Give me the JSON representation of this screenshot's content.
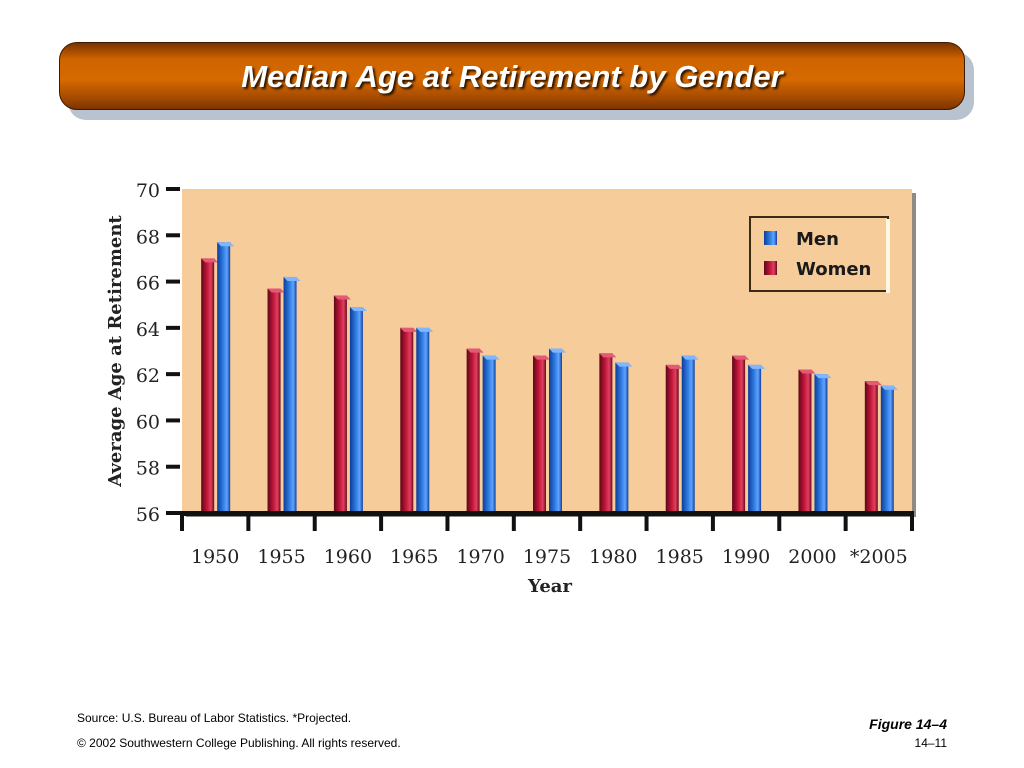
{
  "slide": {
    "title": "Median Age at Retirement by Gender",
    "source": "Source: U.S. Bureau of Labor Statistics. *Projected.",
    "copyright": "© 2002 Southwestern College Publishing. All rights reserved.",
    "figure": "Figure 14–4",
    "page": "14–11"
  },
  "colors": {
    "men": "#2f7be0",
    "women": "#c2163a",
    "plot_bg": "#f5cc9a",
    "title_bar": "#cf6300"
  },
  "chart_data": {
    "type": "bar",
    "categories": [
      "1950",
      "1955",
      "1960",
      "1965",
      "1970",
      "1975",
      "1980",
      "1985",
      "1990",
      "2000",
      "*2005"
    ],
    "series": [
      {
        "name": "Women",
        "values": [
          67.0,
          65.7,
          65.4,
          64.0,
          63.1,
          62.8,
          62.9,
          62.4,
          62.8,
          62.2,
          61.7
        ]
      },
      {
        "name": "Men",
        "values": [
          67.7,
          66.2,
          64.9,
          64.0,
          62.8,
          63.1,
          62.5,
          62.8,
          62.4,
          62.0,
          61.5
        ]
      }
    ],
    "xlabel": "Year",
    "ylabel": "Average Age at Retirement",
    "ylim": [
      56,
      70
    ],
    "yticks": [
      56,
      58,
      60,
      62,
      64,
      66,
      68,
      70
    ],
    "legend": {
      "placement": "top-right",
      "entries": [
        "Men",
        "Women"
      ]
    },
    "grid": false
  }
}
